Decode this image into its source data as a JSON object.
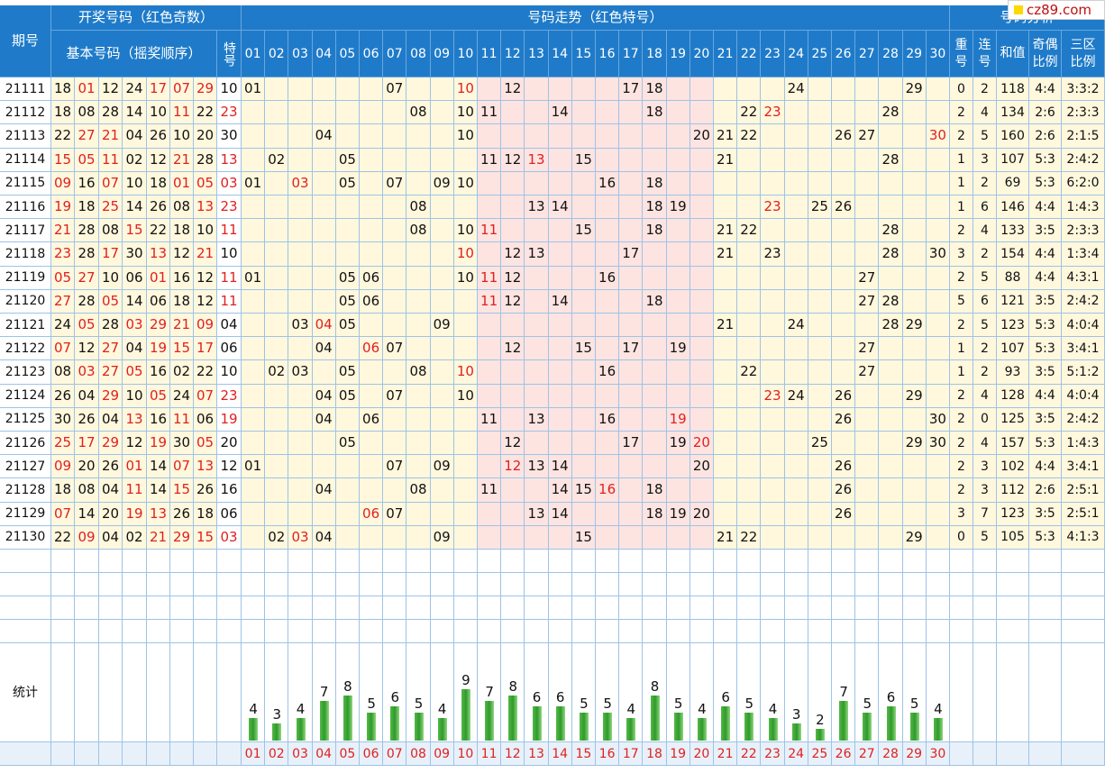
{
  "headers": {
    "period": "期号",
    "draw": "开奖号码（红色奇数）",
    "basic": "基本号码（摇奖顺序）",
    "special": "特号",
    "trend": "号码走势（红色特号）",
    "analysis": "号码分析",
    "repeat": "重号",
    "consecutive": "连号",
    "sum": "和值",
    "odd_even": "奇偶比例",
    "zones": "三区比例",
    "stats": "统计"
  },
  "numbers": [
    "01",
    "02",
    "03",
    "04",
    "05",
    "06",
    "07",
    "08",
    "09",
    "10",
    "11",
    "12",
    "13",
    "14",
    "15",
    "16",
    "17",
    "18",
    "19",
    "20",
    "21",
    "22",
    "23",
    "24",
    "25",
    "26",
    "27",
    "28",
    "29",
    "30"
  ],
  "rows": [
    {
      "period": "21111",
      "nums": [
        "18",
        "01",
        "12",
        "24",
        "17",
        "07",
        "29"
      ],
      "special": "10",
      "repeat": "0",
      "consec": "2",
      "sum": "118",
      "oe": "4:4",
      "zone": "3:3:2"
    },
    {
      "period": "21112",
      "nums": [
        "18",
        "08",
        "28",
        "14",
        "10",
        "11",
        "22"
      ],
      "special": "23",
      "repeat": "2",
      "consec": "4",
      "sum": "134",
      "oe": "2:6",
      "zone": "2:3:3"
    },
    {
      "period": "21113",
      "nums": [
        "22",
        "27",
        "21",
        "04",
        "26",
        "10",
        "20"
      ],
      "special": "30",
      "repeat": "2",
      "consec": "5",
      "sum": "160",
      "oe": "2:6",
      "zone": "2:1:5"
    },
    {
      "period": "21114",
      "nums": [
        "15",
        "05",
        "11",
        "02",
        "12",
        "21",
        "28"
      ],
      "special": "13",
      "repeat": "1",
      "consec": "3",
      "sum": "107",
      "oe": "5:3",
      "zone": "2:4:2"
    },
    {
      "period": "21115",
      "nums": [
        "09",
        "16",
        "07",
        "10",
        "18",
        "01",
        "05"
      ],
      "special": "03",
      "repeat": "1",
      "consec": "2",
      "sum": "69",
      "oe": "5:3",
      "zone": "6:2:0"
    },
    {
      "period": "21116",
      "nums": [
        "19",
        "18",
        "25",
        "14",
        "26",
        "08",
        "13"
      ],
      "special": "23",
      "repeat": "1",
      "consec": "6",
      "sum": "146",
      "oe": "4:4",
      "zone": "1:4:3"
    },
    {
      "period": "21117",
      "nums": [
        "21",
        "28",
        "08",
        "15",
        "22",
        "18",
        "10"
      ],
      "special": "11",
      "repeat": "2",
      "consec": "4",
      "sum": "133",
      "oe": "3:5",
      "zone": "2:3:3"
    },
    {
      "period": "21118",
      "nums": [
        "23",
        "28",
        "17",
        "30",
        "13",
        "12",
        "21"
      ],
      "special": "10",
      "repeat": "3",
      "consec": "2",
      "sum": "154",
      "oe": "4:4",
      "zone": "1:3:4"
    },
    {
      "period": "21119",
      "nums": [
        "05",
        "27",
        "10",
        "06",
        "01",
        "16",
        "12"
      ],
      "special": "11",
      "repeat": "2",
      "consec": "5",
      "sum": "88",
      "oe": "4:4",
      "zone": "4:3:1"
    },
    {
      "period": "21120",
      "nums": [
        "27",
        "28",
        "05",
        "14",
        "06",
        "18",
        "12"
      ],
      "special": "11",
      "repeat": "5",
      "consec": "6",
      "sum": "121",
      "oe": "3:5",
      "zone": "2:4:2"
    },
    {
      "period": "21121",
      "nums": [
        "24",
        "05",
        "28",
        "03",
        "29",
        "21",
        "09"
      ],
      "special": "04",
      "repeat": "2",
      "consec": "5",
      "sum": "123",
      "oe": "5:3",
      "zone": "4:0:4"
    },
    {
      "period": "21122",
      "nums": [
        "07",
        "12",
        "27",
        "04",
        "19",
        "15",
        "17"
      ],
      "special": "06",
      "repeat": "1",
      "consec": "2",
      "sum": "107",
      "oe": "5:3",
      "zone": "3:4:1"
    },
    {
      "period": "21123",
      "nums": [
        "08",
        "03",
        "27",
        "05",
        "16",
        "02",
        "22"
      ],
      "special": "10",
      "repeat": "1",
      "consec": "2",
      "sum": "93",
      "oe": "3:5",
      "zone": "5:1:2"
    },
    {
      "period": "21124",
      "nums": [
        "26",
        "04",
        "29",
        "10",
        "05",
        "24",
        "07"
      ],
      "special": "23",
      "repeat": "2",
      "consec": "4",
      "sum": "128",
      "oe": "4:4",
      "zone": "4:0:4"
    },
    {
      "period": "21125",
      "nums": [
        "30",
        "26",
        "04",
        "13",
        "16",
        "11",
        "06"
      ],
      "special": "19",
      "repeat": "2",
      "consec": "0",
      "sum": "125",
      "oe": "3:5",
      "zone": "2:4:2"
    },
    {
      "period": "21126",
      "nums": [
        "25",
        "17",
        "29",
        "12",
        "19",
        "30",
        "05"
      ],
      "special": "20",
      "repeat": "2",
      "consec": "4",
      "sum": "157",
      "oe": "5:3",
      "zone": "1:4:3"
    },
    {
      "period": "21127",
      "nums": [
        "09",
        "20",
        "26",
        "01",
        "14",
        "07",
        "13"
      ],
      "special": "12",
      "repeat": "2",
      "consec": "3",
      "sum": "102",
      "oe": "4:4",
      "zone": "3:4:1"
    },
    {
      "period": "21128",
      "nums": [
        "18",
        "08",
        "04",
        "11",
        "14",
        "15",
        "26"
      ],
      "special": "16",
      "repeat": "2",
      "consec": "3",
      "sum": "112",
      "oe": "2:6",
      "zone": "2:5:1"
    },
    {
      "period": "21129",
      "nums": [
        "07",
        "14",
        "20",
        "19",
        "13",
        "26",
        "18"
      ],
      "special": "06",
      "repeat": "3",
      "consec": "7",
      "sum": "123",
      "oe": "3:5",
      "zone": "2:5:1"
    },
    {
      "period": "21130",
      "nums": [
        "22",
        "09",
        "04",
        "02",
        "21",
        "29",
        "15"
      ],
      "special": "03",
      "repeat": "0",
      "consec": "5",
      "sum": "105",
      "oe": "5:3",
      "zone": "4:1:3"
    }
  ],
  "counts": [
    4,
    3,
    4,
    7,
    8,
    5,
    6,
    5,
    4,
    9,
    7,
    8,
    6,
    6,
    5,
    5,
    4,
    8,
    5,
    4,
    6,
    5,
    4,
    3,
    2,
    7,
    5,
    6,
    5,
    4
  ],
  "colors": {
    "header": "#1f7bc9",
    "odd": "#e02020",
    "zone_a": "#fff8dd",
    "zone_b": "#fde4e1",
    "zone_c": "#fff8dd",
    "bar": "#2e9a2a"
  },
  "watermark": "cz89.com"
}
